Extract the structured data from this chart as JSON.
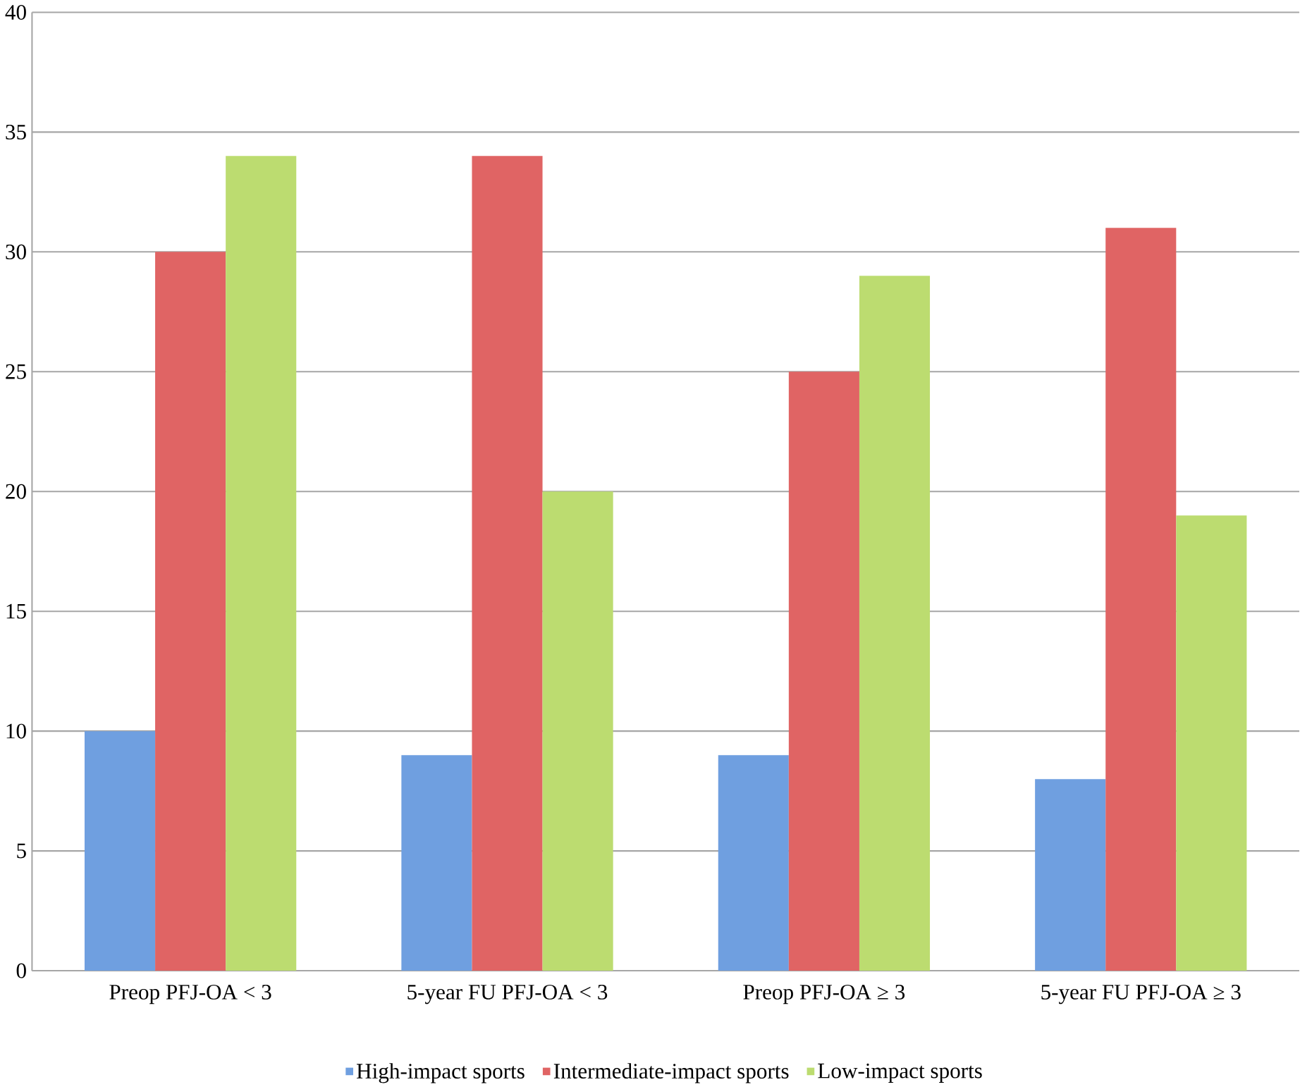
{
  "chart_data": {
    "type": "bar",
    "categories": [
      "Preop PFJ-OA < 3",
      "5-year FU PFJ-OA < 3",
      "Preop PFJ-OA ≥ 3",
      "5-year FU PFJ-OA ≥ 3"
    ],
    "series": [
      {
        "name": "High-impact sports",
        "color": "#6f9fe0",
        "values": [
          10,
          9,
          9,
          8
        ]
      },
      {
        "name": "Intermediate-impact sports",
        "color": "#e06464",
        "values": [
          30,
          34,
          25,
          31
        ]
      },
      {
        "name": "Low-impact sports",
        "color": "#bcdc70",
        "values": [
          34,
          20,
          29,
          19
        ]
      }
    ],
    "ylim": [
      0,
      40
    ],
    "yticks": [
      0,
      5,
      10,
      15,
      20,
      25,
      30,
      35,
      40
    ],
    "grid": "y",
    "legend": "bottom"
  }
}
